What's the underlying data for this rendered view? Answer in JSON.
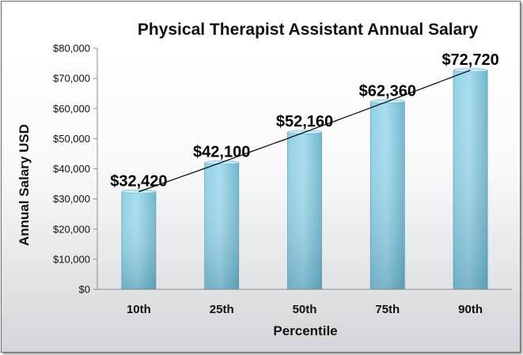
{
  "chart_data": {
    "type": "bar",
    "title": "Physical Therapist Assistant Annual Salary",
    "xlabel": "Percentile",
    "ylabel": "Annual Salary USD",
    "categories": [
      "10th",
      "25th",
      "50th",
      "75th",
      "90th"
    ],
    "values": [
      32420,
      42100,
      52160,
      62360,
      72720
    ],
    "data_labels": [
      "$32,420",
      "$42,100",
      "$52,160",
      "$62,360",
      "$72,720"
    ],
    "ylim": [
      0,
      80000
    ],
    "yticks": [
      0,
      10000,
      20000,
      30000,
      40000,
      50000,
      60000,
      70000,
      80000
    ],
    "ytick_labels": [
      "$0",
      "$10,000",
      "$20,000",
      "$30,000",
      "$40,000",
      "$50,000",
      "$60,000",
      "$70,000",
      "$80,000"
    ],
    "trendline": "polynomial",
    "grid": false,
    "legend": "none",
    "colors": {
      "bar_light": "#a4dcef",
      "bar_mid": "#80c6de",
      "bar_dark": "#5aa3bd",
      "trendline": "#000000",
      "axis": "#8c8c8c"
    }
  }
}
